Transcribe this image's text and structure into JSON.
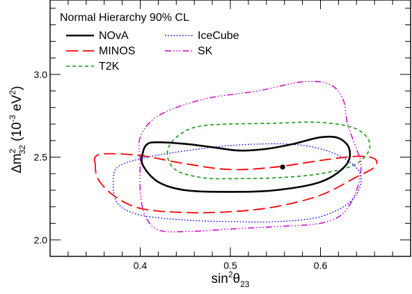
{
  "chart_data": {
    "type": "line",
    "title": "Normal Hierarchy 90% CL",
    "xlabel": {
      "base": "sin",
      "sup": "2",
      "main": "θ",
      "sub": "23"
    },
    "ylabel": {
      "delta": "Δm",
      "sup": "2",
      "sub": "32",
      "unit_open": " (10",
      "unit_sup1": "-3",
      "unit_mid": " eV",
      "unit_sup2": "2",
      "unit_close": ")"
    },
    "xlim": [
      0.3,
      0.7
    ],
    "ylim": [
      1.9,
      3.45
    ],
    "xticks": [
      {
        "value": 0.4,
        "label": "0.4"
      },
      {
        "value": 0.5,
        "label": "0.5"
      },
      {
        "value": 0.6,
        "label": "0.6"
      }
    ],
    "yticks": [
      {
        "value": 2.0,
        "label": "2.0"
      },
      {
        "value": 2.5,
        "label": "2.5"
      },
      {
        "value": 3.0,
        "label": "3.0"
      }
    ],
    "x_minor_step": 0.02,
    "y_minor_step": 0.1,
    "grid": false,
    "legend": "top-left",
    "best_fit": {
      "x": 0.558,
      "y": 2.44
    },
    "series": [
      {
        "name": "NOvA",
        "color": "#000000",
        "dash": "",
        "width": 2.6,
        "points": [
          [
            0.408,
            2.58
          ],
          [
            0.42,
            2.59
          ],
          [
            0.45,
            2.58
          ],
          [
            0.48,
            2.56
          ],
          [
            0.51,
            2.54
          ],
          [
            0.54,
            2.55
          ],
          [
            0.57,
            2.58
          ],
          [
            0.6,
            2.62
          ],
          [
            0.62,
            2.615
          ],
          [
            0.632,
            2.55
          ],
          [
            0.628,
            2.45
          ],
          [
            0.6,
            2.35
          ],
          [
            0.55,
            2.3
          ],
          [
            0.5,
            2.29
          ],
          [
            0.45,
            2.3
          ],
          [
            0.42,
            2.35
          ],
          [
            0.403,
            2.45
          ],
          [
            0.403,
            2.53
          ],
          [
            0.408,
            2.58
          ]
        ]
      },
      {
        "name": "MINOS",
        "color": "#ff0000",
        "dash": "17,7",
        "width": 1.8,
        "points": [
          [
            0.35,
            2.46
          ],
          [
            0.35,
            2.5
          ],
          [
            0.36,
            2.52
          ],
          [
            0.4,
            2.51
          ],
          [
            0.45,
            2.46
          ],
          [
            0.5,
            2.425
          ],
          [
            0.55,
            2.44
          ],
          [
            0.6,
            2.48
          ],
          [
            0.64,
            2.505
          ],
          [
            0.66,
            2.49
          ],
          [
            0.66,
            2.44
          ],
          [
            0.64,
            2.38
          ],
          [
            0.6,
            2.27
          ],
          [
            0.55,
            2.2
          ],
          [
            0.5,
            2.17
          ],
          [
            0.45,
            2.165
          ],
          [
            0.4,
            2.19
          ],
          [
            0.37,
            2.27
          ],
          [
            0.353,
            2.37
          ],
          [
            0.35,
            2.46
          ]
        ]
      },
      {
        "name": "IceCube",
        "color": "#0000ff",
        "dash": "1.6,2.6",
        "width": 1.4,
        "points": [
          [
            0.37,
            2.35
          ],
          [
            0.375,
            2.44
          ],
          [
            0.4,
            2.49
          ],
          [
            0.44,
            2.53
          ],
          [
            0.5,
            2.57
          ],
          [
            0.56,
            2.58
          ],
          [
            0.6,
            2.55
          ],
          [
            0.63,
            2.48
          ],
          [
            0.645,
            2.38
          ],
          [
            0.635,
            2.24
          ],
          [
            0.6,
            2.14
          ],
          [
            0.55,
            2.11
          ],
          [
            0.5,
            2.11
          ],
          [
            0.45,
            2.12
          ],
          [
            0.4,
            2.15
          ],
          [
            0.375,
            2.22
          ],
          [
            0.37,
            2.35
          ]
        ]
      },
      {
        "name": "T2K",
        "color": "#109810",
        "dash": "5,4",
        "width": 1.6,
        "points": [
          [
            0.43,
            2.52
          ],
          [
            0.44,
            2.62
          ],
          [
            0.47,
            2.69
          ],
          [
            0.55,
            2.705
          ],
          [
            0.6,
            2.71
          ],
          [
            0.64,
            2.67
          ],
          [
            0.655,
            2.57
          ],
          [
            0.64,
            2.46
          ],
          [
            0.6,
            2.4
          ],
          [
            0.55,
            2.375
          ],
          [
            0.5,
            2.37
          ],
          [
            0.47,
            2.375
          ],
          [
            0.44,
            2.42
          ],
          [
            0.43,
            2.52
          ]
        ]
      },
      {
        "name": "SK",
        "color": "#cc00cc",
        "dash": "9,3,1.5,3,1.5,3,1.5,3",
        "width": 1.5,
        "points": [
          [
            0.4,
            2.48
          ],
          [
            0.4,
            2.62
          ],
          [
            0.42,
            2.75
          ],
          [
            0.47,
            2.85
          ],
          [
            0.53,
            2.9
          ],
          [
            0.58,
            2.955
          ],
          [
            0.61,
            2.94
          ],
          [
            0.625,
            2.85
          ],
          [
            0.63,
            2.7
          ],
          [
            0.64,
            2.55
          ],
          [
            0.645,
            2.45
          ],
          [
            0.64,
            2.3
          ],
          [
            0.625,
            2.16
          ],
          [
            0.6,
            2.1
          ],
          [
            0.55,
            2.08
          ],
          [
            0.5,
            2.065
          ],
          [
            0.45,
            2.05
          ],
          [
            0.42,
            2.06
          ],
          [
            0.405,
            2.15
          ],
          [
            0.4,
            2.3
          ],
          [
            0.4,
            2.48
          ]
        ]
      }
    ]
  }
}
